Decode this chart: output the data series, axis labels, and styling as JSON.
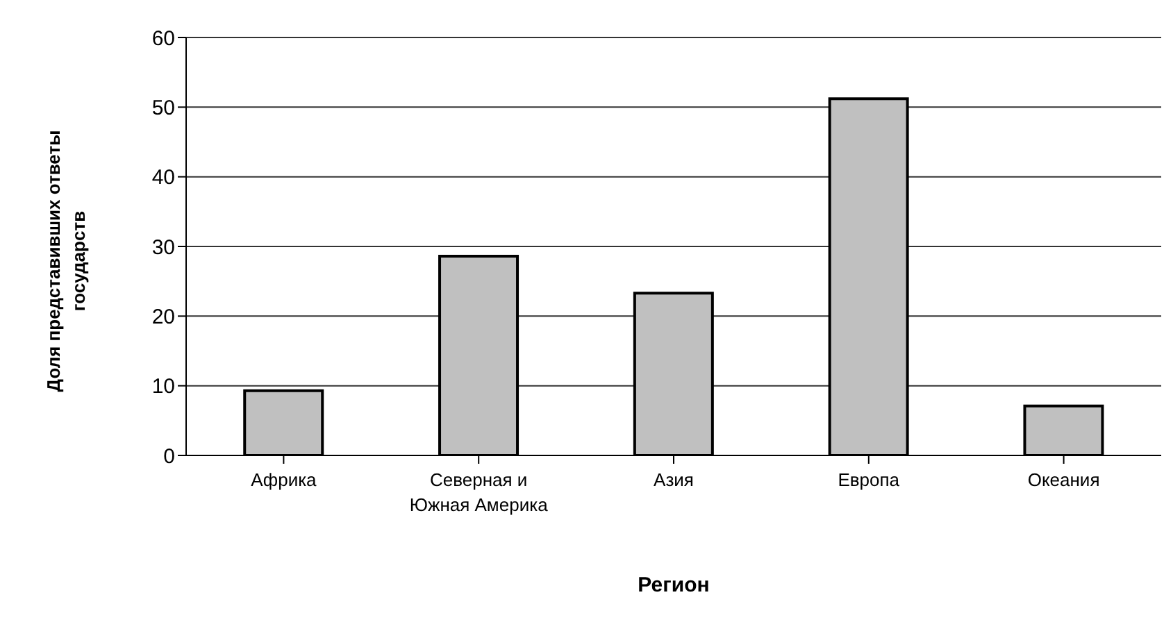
{
  "chart_data": {
    "type": "bar",
    "xlabel": "Регион",
    "ylabel": "Доля представивших ответы государств",
    "categories": [
      "Африка",
      "Северная и Южная Америка",
      "Азия",
      "Европа",
      "Океания"
    ],
    "values": [
      9.3,
      28.6,
      23.3,
      51.2,
      7.1
    ],
    "color": "#c0c0c0",
    "ylim": [
      0,
      60
    ],
    "yticks": [
      0,
      10,
      20,
      30,
      40,
      50,
      60
    ],
    "grid": "y"
  }
}
